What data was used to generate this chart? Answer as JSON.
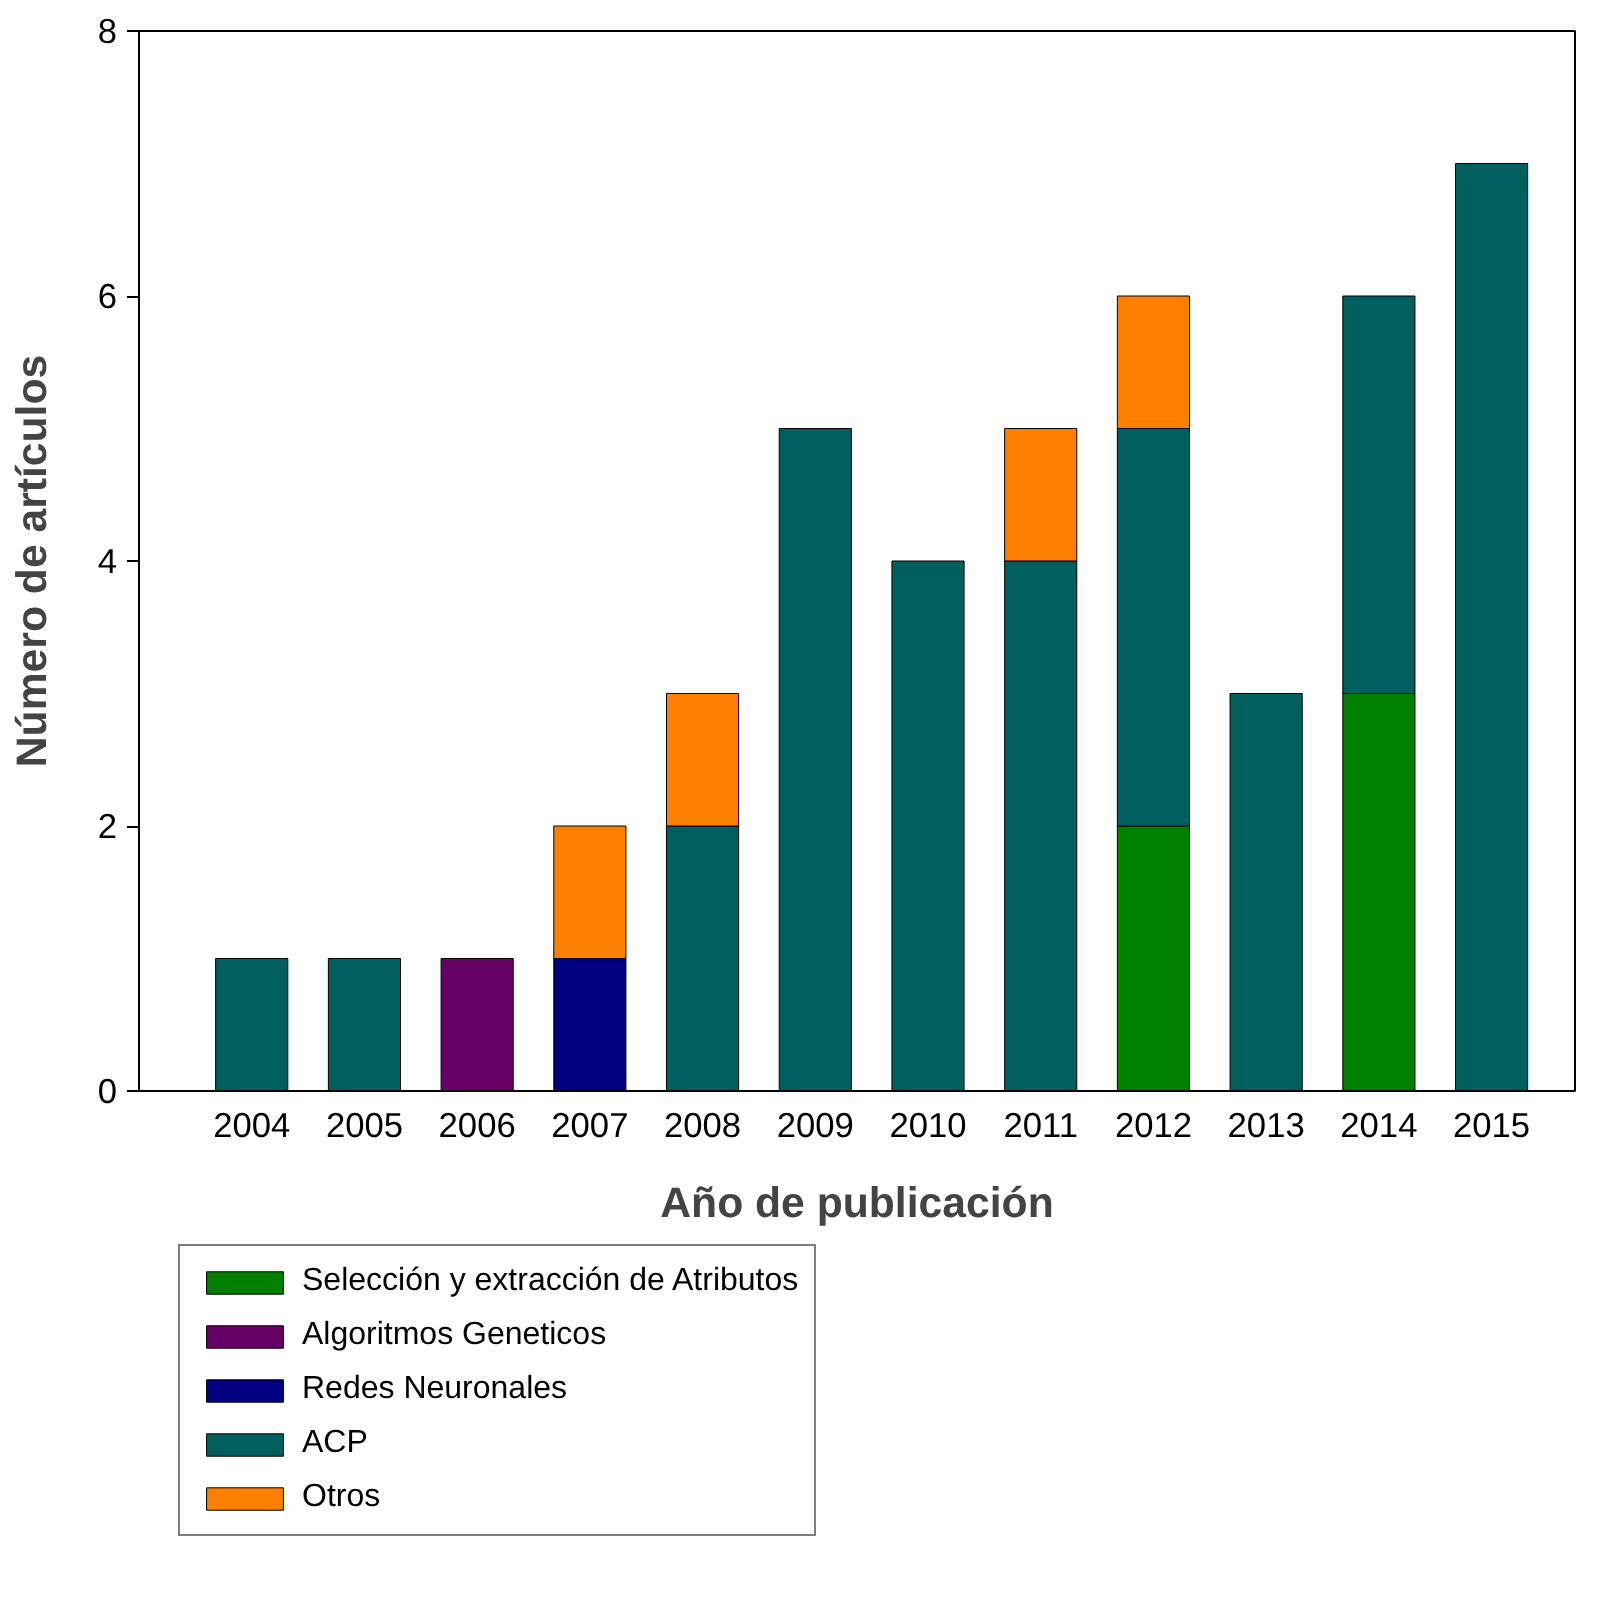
{
  "chart_data": {
    "type": "bar",
    "stacked": true,
    "xlabel": "Año de publicación",
    "ylabel": "Número de artículos",
    "categories": [
      "2004",
      "2005",
      "2006",
      "2007",
      "2008",
      "2009",
      "2010",
      "2011",
      "2012",
      "2013",
      "2014",
      "2015"
    ],
    "series": [
      {
        "name": "Selección y extracción de Atributos",
        "color": "#008000",
        "values": [
          null,
          null,
          null,
          null,
          null,
          null,
          null,
          null,
          2,
          null,
          3,
          null
        ]
      },
      {
        "name": "Algoritmos Geneticos",
        "color": "#660066",
        "values": [
          null,
          null,
          1,
          null,
          null,
          null,
          null,
          null,
          null,
          null,
          null,
          null
        ]
      },
      {
        "name": "Redes Neuronales",
        "color": "#000080",
        "values": [
          null,
          null,
          null,
          1,
          null,
          null,
          null,
          null,
          null,
          null,
          null,
          null
        ]
      },
      {
        "name": "ACP",
        "color": "#006060",
        "values": [
          1,
          1,
          null,
          null,
          2,
          5,
          4,
          4,
          3,
          3,
          3,
          7
        ]
      },
      {
        "name": "Otros",
        "color": "#ff8000",
        "values": [
          null,
          null,
          null,
          1,
          1,
          null,
          null,
          1,
          1,
          null,
          null,
          null
        ]
      }
    ],
    "ylim": [
      0,
      8
    ],
    "yticks": [
      0,
      2,
      4,
      6,
      8
    ],
    "grid": false,
    "legend": "bottom left"
  }
}
